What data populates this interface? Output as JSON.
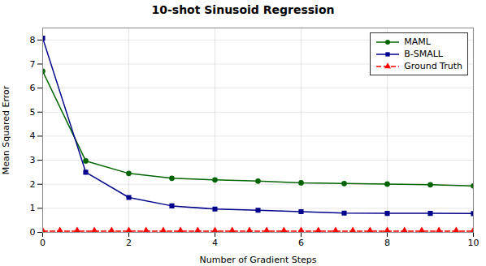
{
  "chart_data": {
    "type": "line",
    "title": "10-shot Sinusoid Regression",
    "xlabel": "Number of Gradient Steps",
    "ylabel": "Mean Squared Error",
    "xlim": [
      0,
      10
    ],
    "ylim": [
      0,
      8.5
    ],
    "xticks": [
      0,
      2,
      4,
      6,
      8,
      10
    ],
    "yticks": [
      0,
      1,
      2,
      3,
      4,
      5,
      6,
      7,
      8
    ],
    "grid": true,
    "legend": "upper right",
    "series": [
      {
        "name": "MAML",
        "color": "#006400",
        "marker": "circle",
        "line_style": "solid",
        "x": [
          0,
          1,
          2,
          3,
          4,
          5,
          6,
          7,
          8,
          9,
          10
        ],
        "values": [
          6.7,
          2.97,
          2.45,
          2.25,
          2.18,
          2.13,
          2.06,
          2.03,
          2.01,
          1.98,
          1.93
        ]
      },
      {
        "name": "B-SMALL",
        "color": "#00008B",
        "marker": "square",
        "line_style": "solid",
        "x": [
          0,
          1,
          2,
          3,
          4,
          5,
          6,
          7,
          8,
          9,
          10
        ],
        "values": [
          8.08,
          2.5,
          1.45,
          1.1,
          0.97,
          0.92,
          0.86,
          0.8,
          0.79,
          0.79,
          0.78
        ]
      },
      {
        "name": "Ground Truth",
        "color": "red",
        "marker": "triangle",
        "line_style": "dashed",
        "x": [
          0.0,
          0.4,
          0.8,
          1.2,
          1.6,
          2.0,
          2.4,
          2.8,
          3.2,
          3.6,
          4.0,
          4.4,
          4.8,
          5.2,
          5.6,
          6.0,
          6.4,
          6.8,
          7.2,
          7.6,
          8.0,
          8.4,
          8.8,
          9.2,
          9.6,
          10.0
        ],
        "values": [
          0.05,
          0.05,
          0.05,
          0.05,
          0.05,
          0.05,
          0.05,
          0.05,
          0.05,
          0.05,
          0.05,
          0.05,
          0.05,
          0.05,
          0.05,
          0.05,
          0.05,
          0.05,
          0.05,
          0.05,
          0.05,
          0.05,
          0.05,
          0.05,
          0.05,
          0.05
        ]
      }
    ]
  }
}
